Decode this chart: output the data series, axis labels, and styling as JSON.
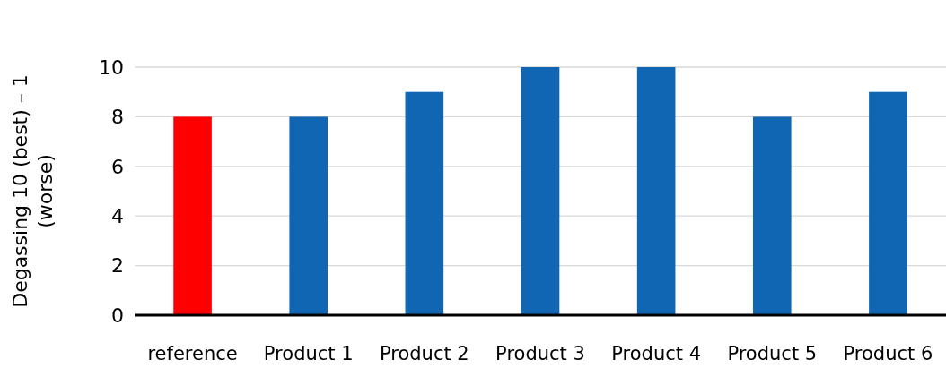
{
  "chart_data": {
    "type": "bar",
    "ylabel": "Degassing 10 (best) – 1 (worse)",
    "categories": [
      "reference",
      "Product 1",
      "Product 2",
      "Product 3",
      "Product 4",
      "Product 5",
      "Product 6"
    ],
    "values": [
      8,
      8,
      9,
      10,
      10,
      8,
      9
    ],
    "colors": [
      "#ff0000",
      "#1166b3",
      "#1166b3",
      "#1166b3",
      "#1166b3",
      "#1166b3",
      "#1166b3"
    ],
    "ylim": [
      0,
      10
    ],
    "yticks": [
      0,
      2,
      4,
      6,
      8,
      10
    ],
    "grid": "y"
  }
}
